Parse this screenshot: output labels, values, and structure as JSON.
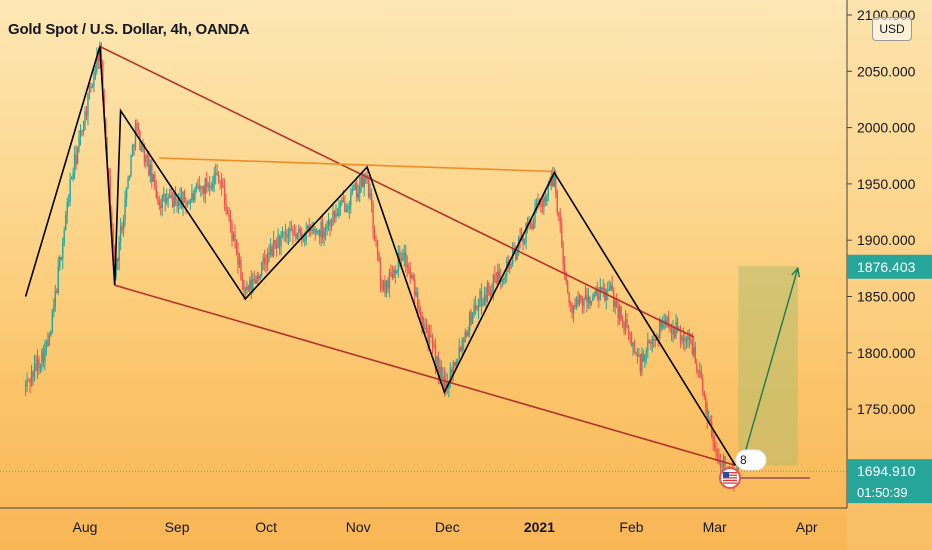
{
  "header": {
    "title": "Gold Spot / U.S. Dollar, 4h, OANDA",
    "currency": "USD"
  },
  "price_labels": {
    "current_price": "1876.403",
    "last_price": "1694.910",
    "countdown": "01:50:39"
  },
  "events": {
    "count": "8"
  },
  "colors": {
    "background_top": "#fde7b4",
    "background_bottom": "#f9b655",
    "bull_candle": "#26a69a",
    "bear_candle": "#ef5350",
    "trend_line": "#b5322a",
    "resistance_line": "#f28c28",
    "zigzag": "#000000",
    "target_zone": "#b5bc6a",
    "projection_arrow": "#1e7a4c",
    "price_label_green": "#26a69a",
    "last_price_line": "#4caf50"
  },
  "chart_data": {
    "type": "candlestick",
    "title": "Gold Spot / U.S. Dollar, 4h, OANDA",
    "xlabel": "",
    "ylabel": "",
    "x_ticks": [
      "Aug",
      "Sep",
      "Oct",
      "Nov",
      "Dec",
      "2021",
      "Feb",
      "Mar",
      "Apr"
    ],
    "y_ticks": [
      "2100.000",
      "2050.000",
      "2000.000",
      "1950.000",
      "1900.000",
      "1850.000",
      "1800.000",
      "1750.000"
    ],
    "ylim": [
      1675,
      2110
    ],
    "xlim": [
      "2020-07-12",
      "2021-04-10"
    ],
    "axis_position": "right",
    "grid": false,
    "price_path": [
      [
        "2020-07-12",
        1770
      ],
      [
        "2020-07-20",
        1810
      ],
      [
        "2020-07-27",
        1950
      ],
      [
        "2020-08-06",
        2072
      ],
      [
        "2020-08-11",
        1870
      ],
      [
        "2020-08-18",
        2000
      ],
      [
        "2020-08-26",
        1935
      ],
      [
        "2020-09-05",
        1935
      ],
      [
        "2020-09-15",
        1960
      ],
      [
        "2020-09-24",
        1851
      ],
      [
        "2020-10-05",
        1900
      ],
      [
        "2020-10-20",
        1910
      ],
      [
        "2020-11-04",
        1955
      ],
      [
        "2020-11-09",
        1855
      ],
      [
        "2020-11-16",
        1890
      ],
      [
        "2020-11-30",
        1768
      ],
      [
        "2020-12-10",
        1840
      ],
      [
        "2020-12-22",
        1880
      ],
      [
        "2021-01-06",
        1955
      ],
      [
        "2021-01-11",
        1840
      ],
      [
        "2021-01-25",
        1855
      ],
      [
        "2021-02-04",
        1790
      ],
      [
        "2021-02-12",
        1830
      ],
      [
        "2021-02-22",
        1805
      ],
      [
        "2021-03-01",
        1715
      ],
      [
        "2021-03-08",
        1685
      ],
      [
        "2021-03-09",
        1694.91
      ]
    ],
    "overlays": {
      "descending_channel_upper": [
        [
          "2020-08-06",
          2072
        ],
        [
          "2021-02-22",
          1814
        ]
      ],
      "descending_channel_lower": [
        [
          "2020-08-11",
          1860
        ],
        [
          "2021-03-08",
          1700
        ]
      ],
      "resistance_line": [
        [
          "2020-08-26",
          1973
        ],
        [
          "2021-01-06",
          1961
        ]
      ],
      "zigzag": [
        [
          "2020-07-12",
          1850
        ],
        [
          "2020-08-06",
          2072
        ],
        [
          "2020-08-11",
          1860
        ],
        [
          "2020-08-13",
          2015
        ],
        [
          "2020-09-24",
          1848
        ],
        [
          "2020-11-04",
          1965
        ],
        [
          "2020-11-30",
          1765
        ],
        [
          "2021-01-06",
          1960
        ],
        [
          "2021-03-08",
          1700
        ]
      ],
      "target_zone": {
        "x": [
          "2021-03-09",
          "2021-03-29"
        ],
        "y": [
          1700,
          1877
        ]
      },
      "projection_arrow": [
        [
          "2021-03-10",
          1700
        ],
        [
          "2021-03-29",
          1875
        ]
      ]
    },
    "labels": {
      "current_price": 1876.403,
      "last_price": 1694.91,
      "countdown": "01:50:39"
    }
  }
}
